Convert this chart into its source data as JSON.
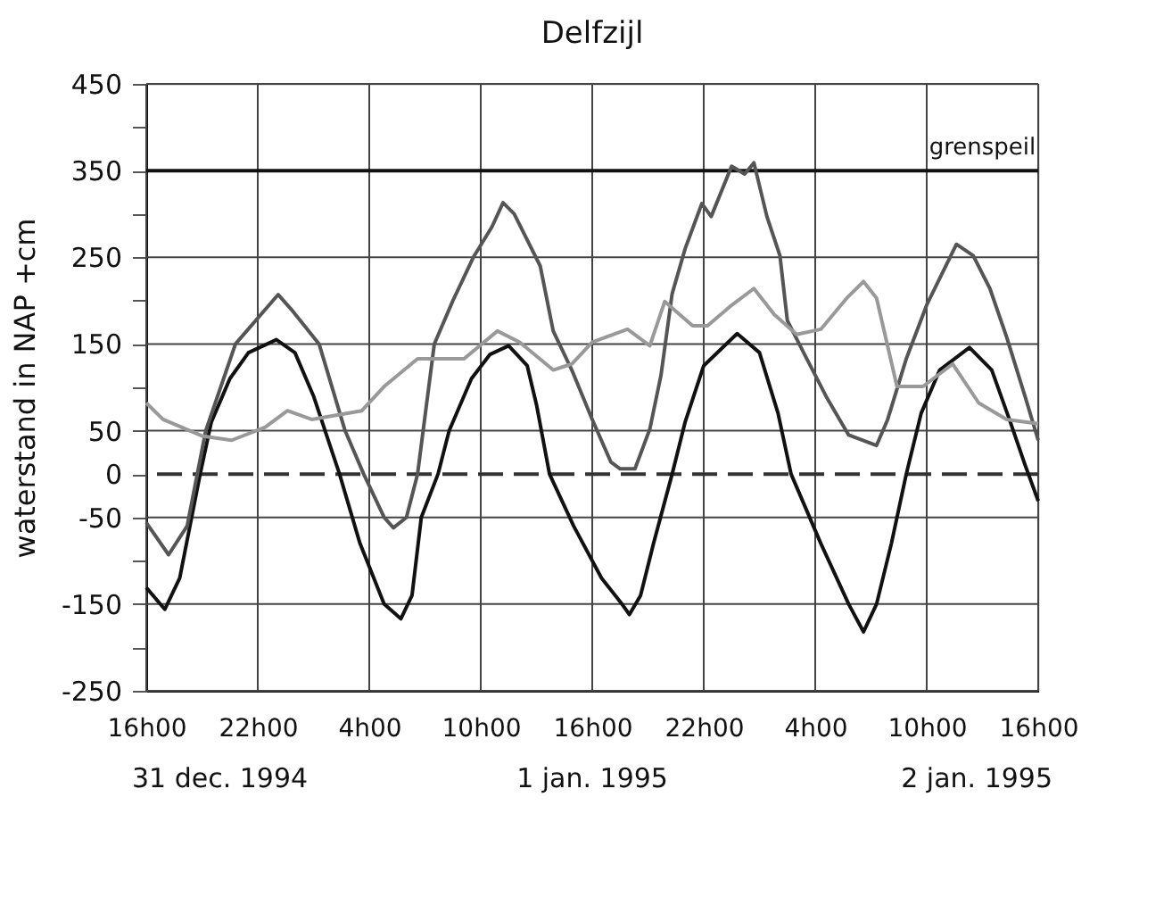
{
  "chart_data": {
    "type": "line",
    "title": "Delfzijl",
    "ylabel": "waterstand in NAP +cm",
    "xlim": [
      "1994-12-31T16:00",
      "1995-01-02T16:00"
    ],
    "ylim": [
      -250,
      450
    ],
    "xticks": [
      {
        "value": "1994-12-31T16:00",
        "label": "16h00"
      },
      {
        "value": "1994-12-31T22:00",
        "label": "22h00"
      },
      {
        "value": "1995-01-01T04:00",
        "label": "4h00"
      },
      {
        "value": "1995-01-01T10:00",
        "label": "10h00"
      },
      {
        "value": "1995-01-01T16:00",
        "label": "16h00"
      },
      {
        "value": "1995-01-01T22:00",
        "label": "22h00"
      },
      {
        "value": "1995-01-02T04:00",
        "label": "4h00"
      },
      {
        "value": "1995-01-02T10:00",
        "label": "10h00"
      },
      {
        "value": "1995-01-02T16:00",
        "label": "16h00"
      }
    ],
    "yticks": [
      450,
      {
        "value": 400,
        "label": null
      },
      350,
      {
        "value": 300,
        "label": null
      },
      250,
      {
        "value": 200,
        "label": null
      },
      150,
      {
        "value": 100,
        "label": null
      },
      50,
      0,
      -50,
      {
        "value": -100,
        "label": null
      },
      -150,
      {
        "value": -200,
        "label": null
      },
      -250
    ],
    "grid": true,
    "series": [
      {
        "color": "#111111",
        "x": [
          "1994-12-31T16:00",
          "1994-12-31T17:00",
          "1994-12-31T17:48",
          "1994-12-31T18:54",
          "1994-12-31T19:30",
          "1994-12-31T20:30",
          "1994-12-31T21:30",
          "1994-12-31T23:00",
          "1995-01-01T00:00",
          "1995-01-01T01:00",
          "1995-01-01T02:24",
          "1995-01-01T03:30",
          "1995-01-01T04:48",
          "1995-01-01T05:42",
          "1995-01-01T06:18",
          "1995-01-01T06:48",
          "1995-01-01T07:42",
          "1995-01-01T08:18",
          "1995-01-01T09:30",
          "1995-01-01T10:30",
          "1995-01-01T11:30",
          "1995-01-01T12:30",
          "1995-01-01T13:00",
          "1995-01-01T13:42",
          "1995-01-01T15:00",
          "1995-01-01T16:30",
          "1995-01-01T17:36",
          "1995-01-01T18:00",
          "1995-01-01T18:36",
          "1995-01-01T19:18",
          "1995-01-01T20:18",
          "1995-01-01T21:00",
          "1995-01-01T22:00",
          "1995-01-01T23:48",
          "1995-01-02T01:00",
          "1995-01-02T02:00",
          "1995-01-02T02:42",
          "1995-01-02T04:18",
          "1995-01-02T05:48",
          "1995-01-02T06:36",
          "1995-01-02T07:18",
          "1995-01-02T08:06",
          "1995-01-02T08:54",
          "1995-01-02T09:42",
          "1995-01-02T10:42",
          "1995-01-02T12:18",
          "1995-01-02T13:30",
          "1995-01-02T14:30",
          "1995-01-02T15:18",
          "1995-01-02T16:00"
        ],
        "values": [
          -131,
          -156,
          -120,
          0,
          60,
          110,
          140,
          155,
          140,
          90,
          0,
          -80,
          -150,
          -167,
          -140,
          -50,
          0,
          50,
          110,
          138,
          148,
          125,
          80,
          0,
          -60,
          -120,
          -150,
          -162,
          -140,
          -80,
          0,
          60,
          125,
          162,
          140,
          70,
          0,
          -80,
          -150,
          -182,
          -150,
          -80,
          0,
          70,
          120,
          146,
          120,
          60,
          10,
          -31
        ]
      },
      {
        "color": "#555555",
        "x": [
          "1994-12-31T16:00",
          "1994-12-31T17:12",
          "1994-12-31T18:12",
          "1994-12-31T19:12",
          "1994-12-31T20:48",
          "1994-12-31T23:06",
          "1994-12-31T23:48",
          "1995-01-01T01:18",
          "1995-01-01T02:42",
          "1995-01-01T03:42",
          "1995-01-01T04:48",
          "1995-01-01T05:18",
          "1995-01-01T06:00",
          "1995-01-01T06:36",
          "1995-01-01T06:54",
          "1995-01-01T07:30",
          "1995-01-01T08:30",
          "1995-01-01T09:36",
          "1995-01-01T10:36",
          "1995-01-01T11:12",
          "1995-01-01T11:48",
          "1995-01-01T13:12",
          "1995-01-01T13:54",
          "1995-01-01T14:54",
          "1995-01-01T16:00",
          "1995-01-01T17:00",
          "1995-01-01T17:30",
          "1995-01-01T18:18",
          "1995-01-01T19:06",
          "1995-01-01T19:42",
          "1995-01-01T20:18",
          "1995-01-01T21:00",
          "1995-01-01T21:54",
          "1995-01-01T22:24",
          "1995-01-01T23:30",
          "1995-01-02T00:12",
          "1995-01-02T00:42",
          "1995-01-02T01:24",
          "1995-01-02T02:06",
          "1995-01-02T02:30",
          "1995-01-02T03:24",
          "1995-01-02T04:36",
          "1995-01-02T05:48",
          "1995-01-02T07:18",
          "1995-01-02T07:54",
          "1995-01-02T08:54",
          "1995-01-02T10:00",
          "1995-01-02T11:36",
          "1995-01-02T12:30",
          "1995-01-02T13:24",
          "1995-01-02T14:18",
          "1995-01-02T15:18",
          "1995-01-02T16:00"
        ],
        "values": [
          -56,
          -93,
          -60,
          50,
          150,
          207,
          190,
          150,
          50,
          0,
          -50,
          -62,
          -50,
          0,
          50,
          150,
          200,
          250,
          285,
          313,
          300,
          240,
          165,
          120,
          63,
          14,
          6,
          6,
          52,
          114,
          208,
          260,
          312,
          297,
          355,
          346,
          359,
          297,
          252,
          177,
          139,
          89,
          45,
          33,
          63,
          133,
          195,
          265,
          252,
          214,
          158,
          89,
          39
        ]
      },
      {
        "color": "#999999",
        "x": [
          "1994-12-31T16:00",
          "1994-12-31T16:54",
          "1994-12-31T19:00",
          "1994-12-31T20:36",
          "1994-12-31T22:24",
          "1994-12-31T23:36",
          "1995-01-01T00:54",
          "1995-01-01T03:36",
          "1995-01-01T04:48",
          "1995-01-01T06:36",
          "1995-01-01T09:06",
          "1995-01-01T10:54",
          "1995-01-01T12:06",
          "1995-01-01T13:54",
          "1995-01-01T14:54",
          "1995-01-01T16:00",
          "1995-01-01T17:54",
          "1995-01-01T19:06",
          "1995-01-01T19:54",
          "1995-01-01T21:24",
          "1995-01-01T22:12",
          "1995-01-01T23:24",
          "1995-01-02T00:42",
          "1995-01-02T01:48",
          "1995-01-02T03:00",
          "1995-01-02T04:18",
          "1995-01-02T05:42",
          "1995-01-02T06:36",
          "1995-01-02T07:18",
          "1995-01-02T08:24",
          "1995-01-02T09:48",
          "1995-01-02T11:24",
          "1995-01-02T12:48",
          "1995-01-02T14:18",
          "1995-01-02T16:00"
        ],
        "values": [
          82,
          63,
          44,
          39,
          54,
          73,
          63,
          73,
          101,
          133,
          133,
          165,
          152,
          120,
          127,
          152,
          167,
          148,
          199,
          171,
          171,
          193,
          214,
          184,
          161,
          167,
          203,
          222,
          203,
          101,
          101,
          127,
          82,
          63,
          58
        ]
      }
    ],
    "ref_lines": [
      {
        "axis": "y",
        "value": 350,
        "label": "grenspeil",
        "color": "#111111"
      },
      {
        "axis": "y",
        "value": 0,
        "color": "#333333",
        "line_style": "dashed"
      }
    ],
    "annotations": [
      "31 dec. 1994",
      "1 jan. 1995",
      "2 jan. 1995"
    ]
  }
}
